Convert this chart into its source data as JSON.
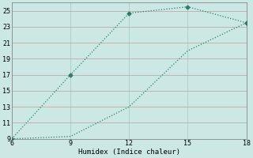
{
  "line1_x": [
    6,
    9,
    12,
    15,
    18
  ],
  "line1_y": [
    9,
    17,
    24.7,
    25.5,
    23.5
  ],
  "line2_x": [
    6,
    9,
    12,
    15,
    18
  ],
  "line2_y": [
    9,
    9.3,
    13.0,
    20.0,
    23.5
  ],
  "line1_markers": [
    1,
    2,
    3,
    4
  ],
  "line2_markers": [
    0,
    4
  ],
  "xlim": [
    6,
    18
  ],
  "ylim": [
    9,
    26
  ],
  "xticks": [
    6,
    9,
    12,
    15,
    18
  ],
  "yticks": [
    9,
    11,
    13,
    15,
    17,
    19,
    21,
    23,
    25
  ],
  "xlabel": "Humidex (Indice chaleur)",
  "line_color": "#2d7d6e",
  "bg_color": "#cce8e4",
  "hgrid_color": "#c0aaa8",
  "vgrid_color": "#aaccc8",
  "marker": "D",
  "marker_size": 2.5,
  "linewidth": 0.9
}
